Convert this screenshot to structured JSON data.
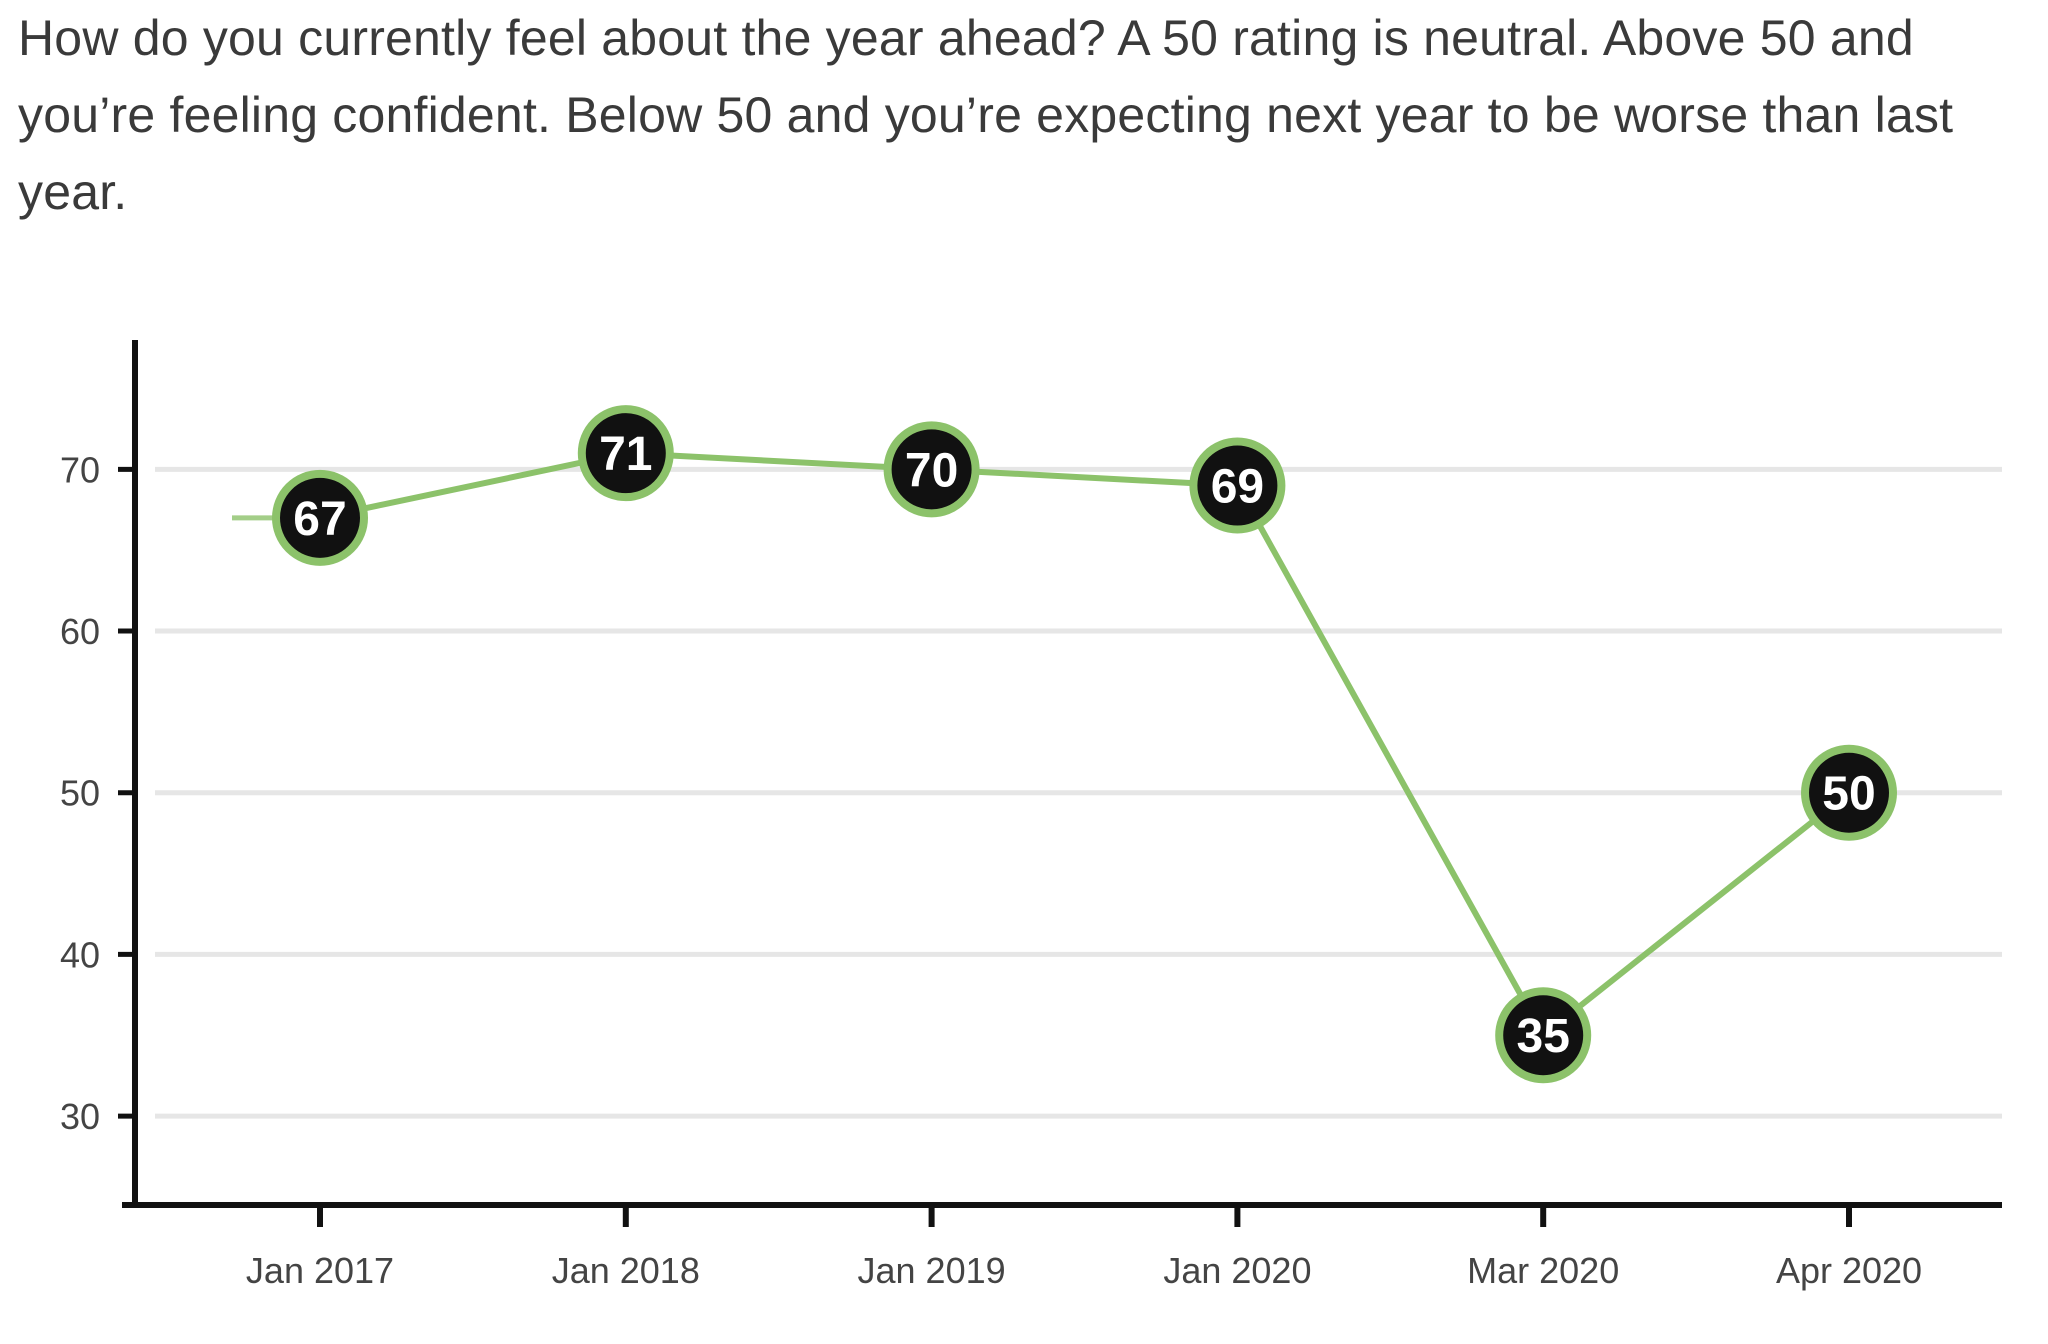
{
  "intro_text": "How do you currently feel about the year ahead? A 50 rating is neutral. Above 50 and you’re feeling confident. Below 50 and you’re expecting next year to be worse than last year.",
  "colors": {
    "line": "#8cc26a",
    "marker_fill": "#111111",
    "marker_ring": "#8cc26a",
    "marker_text": "#ffffff",
    "gridline": "#e6e6e6",
    "axis": "#111111",
    "tick_text": "#444444"
  },
  "chart_data": {
    "type": "line",
    "categories": [
      "Jan 2017",
      "Jan 2018",
      "Jan 2019",
      "Jan 2020",
      "Mar 2020",
      "Apr 2020"
    ],
    "series": [
      {
        "values": [
          67,
          71,
          70,
          69,
          35,
          50
        ],
        "data_labels": [
          "67",
          "71",
          "70",
          "69",
          "35",
          "50"
        ]
      }
    ],
    "y_ticks": [
      30,
      40,
      50,
      60,
      70
    ],
    "y_tick_labels": [
      "30",
      "40",
      "50",
      "60",
      "70"
    ],
    "ylim": [
      24.5,
      78
    ],
    "grid": true,
    "legend": "none"
  }
}
